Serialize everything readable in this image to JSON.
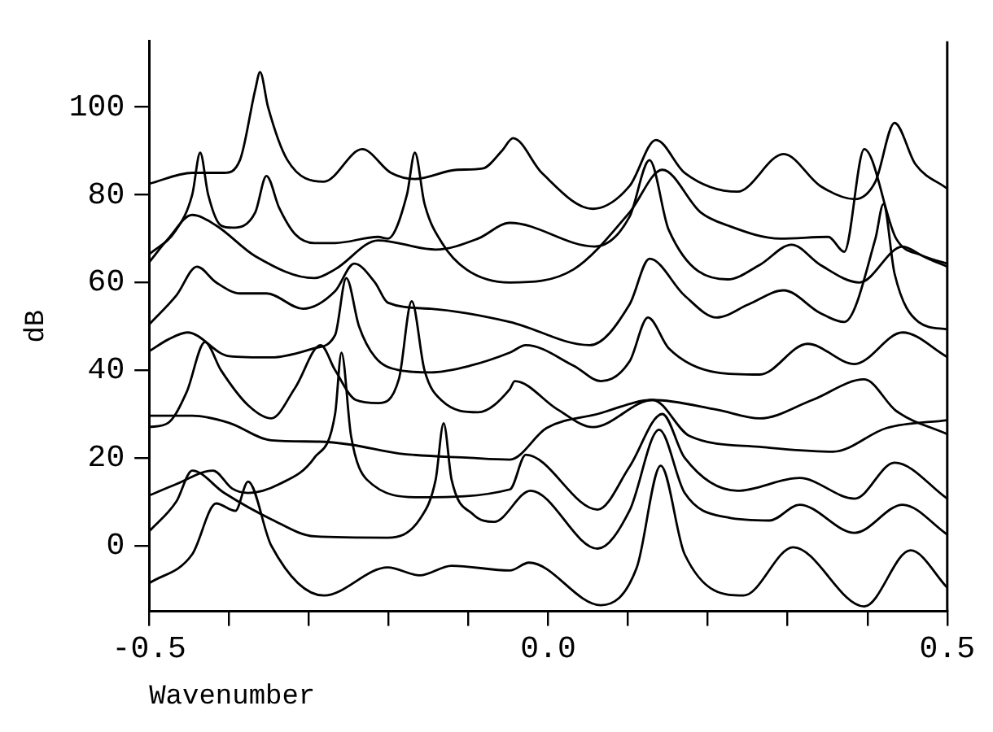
{
  "chart_data": {
    "type": "line",
    "xlabel": "Wavenumber",
    "ylabel": "dB",
    "xlim": [
      -0.5,
      0.5
    ],
    "ylim": [
      -15,
      115
    ],
    "xticks": [
      {
        "value": -0.5,
        "label": "-0.5"
      },
      {
        "value": -0.4,
        "label": null
      },
      {
        "value": -0.3,
        "label": null
      },
      {
        "value": -0.2,
        "label": null
      },
      {
        "value": -0.1,
        "label": null
      },
      {
        "value": 0,
        "label": "0.0"
      },
      {
        "value": 0.1,
        "label": null
      },
      {
        "value": 0.2,
        "label": null
      },
      {
        "value": 0.3,
        "label": null
      },
      {
        "value": 0.4,
        "label": null
      },
      {
        "value": 0.5,
        "label": "0.5"
      }
    ],
    "yticks": [
      0,
      20,
      40,
      60,
      80,
      100
    ],
    "grid": false,
    "legend": false,
    "marker": "none",
    "line_style": "solid",
    "series": [
      {
        "color": "#000000",
        "x": [
          -0.5,
          -0.446,
          -0.406,
          -0.386,
          -0.367,
          -0.361,
          -0.351,
          -0.327,
          -0.281,
          -0.233,
          -0.197,
          -0.167,
          -0.114,
          -0.082,
          -0.058,
          -0.044,
          -0.008,
          0.056,
          0.102,
          0.135,
          0.171,
          0.237,
          0.295,
          0.341,
          0.384,
          0.41,
          0.434,
          0.46,
          0.5
        ],
        "values": [
          82.5,
          85,
          85,
          88,
          104,
          108,
          100,
          88,
          83,
          90.4,
          85,
          83.6,
          85.7,
          86,
          90,
          92.9,
          85,
          76.8,
          82,
          92.5,
          85,
          80.7,
          89.3,
          82,
          79,
          83,
          96.4,
          87,
          81.4
        ]
      },
      {
        "color": "#000000",
        "x": [
          -0.5,
          -0.466,
          -0.446,
          -0.436,
          -0.426,
          -0.41,
          -0.396,
          -0.367,
          -0.353,
          -0.337,
          -0.317,
          -0.293,
          -0.267,
          -0.213,
          -0.201,
          -0.177,
          -0.167,
          -0.155,
          -0.133,
          -0.102,
          -0.048,
          0.032,
          0.102,
          0.143,
          0.191,
          0.225,
          0.291,
          0.351,
          0.371,
          0.396,
          0.436,
          0.47,
          0.5
        ],
        "values": [
          66.4,
          72,
          80,
          89.6,
          80,
          73,
          72.5,
          76,
          84.3,
          77,
          71,
          69,
          69,
          70.4,
          70,
          80,
          89.6,
          78,
          69,
          62.9,
          60,
          63,
          76,
          85.7,
          76,
          73,
          70,
          70.4,
          67,
          90.4,
          70,
          66,
          63.6
        ]
      },
      {
        "color": "#000000",
        "x": [
          -0.5,
          -0.476,
          -0.446,
          -0.416,
          -0.367,
          -0.293,
          -0.267,
          -0.213,
          -0.141,
          -0.088,
          -0.048,
          0.058,
          0.102,
          0.127,
          0.151,
          0.225,
          0.265,
          0.305,
          0.341,
          0.39,
          0.444,
          0.47,
          0.5
        ],
        "values": [
          64.6,
          70,
          75.4,
          73,
          66,
          61,
          63,
          69.6,
          67.5,
          70,
          73.6,
          68.2,
          75,
          87.9,
          72,
          60.7,
          64,
          68.6,
          64,
          60,
          68.2,
          66,
          64.3
        ]
      },
      {
        "color": "#000000",
        "x": [
          -0.5,
          -0.466,
          -0.44,
          -0.416,
          -0.386,
          -0.353,
          -0.307,
          -0.267,
          -0.243,
          -0.217,
          -0.201,
          -0.147,
          -0.048,
          0.052,
          0.102,
          0.127,
          0.171,
          0.211,
          0.251,
          0.295,
          0.341,
          0.371,
          0.41,
          0.42,
          0.434,
          0.464,
          0.5
        ],
        "values": [
          50.4,
          57,
          63.6,
          60,
          57.5,
          57.5,
          54,
          58,
          64.3,
          60,
          55.4,
          54,
          51,
          45.7,
          55,
          65.4,
          57,
          52,
          55,
          58.2,
          53,
          51,
          70,
          77.9,
          62,
          51,
          49.3
        ]
      },
      {
        "color": "#000000",
        "x": [
          -0.5,
          -0.476,
          -0.452,
          -0.4,
          -0.347,
          -0.293,
          -0.267,
          -0.253,
          -0.237,
          -0.217,
          -0.187,
          -0.147,
          -0.098,
          -0.048,
          -0.028,
          0.032,
          0.066,
          0.102,
          0.125,
          0.151,
          0.211,
          0.265,
          0.325,
          0.384,
          0.444,
          0.5
        ],
        "values": [
          44.3,
          47,
          48.6,
          43.2,
          42.9,
          45,
          48,
          61,
          50,
          43,
          40,
          39.5,
          41,
          44,
          45.7,
          41,
          37.5,
          42,
          52,
          45,
          39.5,
          39,
          46,
          41.4,
          48.6,
          43
        ]
      },
      {
        "color": "#000000",
        "x": [
          -0.5,
          -0.476,
          -0.453,
          -0.43,
          -0.41,
          -0.376,
          -0.347,
          -0.317,
          -0.285,
          -0.267,
          -0.241,
          -0.213,
          -0.187,
          -0.171,
          -0.155,
          -0.133,
          -0.088,
          -0.048,
          -0.042,
          0.012,
          0.056,
          0.131,
          0.177,
          0.265,
          0.357,
          0.424,
          0.5
        ],
        "values": [
          27,
          28,
          35,
          46.4,
          40,
          32,
          29,
          36,
          45.7,
          40,
          33.2,
          32.5,
          38,
          55.7,
          40,
          33,
          30.4,
          35.7,
          37.5,
          31,
          27,
          33.2,
          25,
          22.5,
          21.4,
          26.8,
          28.6
        ]
      },
      {
        "color": "#000000",
        "x": [
          -0.5,
          -0.446,
          -0.4,
          -0.347,
          -0.287,
          -0.247,
          -0.187,
          -0.098,
          -0.048,
          -0.002,
          0.062,
          0.131,
          0.211,
          0.265,
          0.331,
          0.396,
          0.436,
          0.5
        ],
        "values": [
          29.6,
          29.6,
          28,
          24,
          23.7,
          23,
          21,
          20,
          19.6,
          26.8,
          30,
          33.2,
          31,
          29,
          33.2,
          37.9,
          30.7,
          25.4
        ]
      },
      {
        "color": "#000000",
        "x": [
          -0.5,
          -0.466,
          -0.42,
          -0.396,
          -0.376,
          -0.337,
          -0.293,
          -0.267,
          -0.259,
          -0.247,
          -0.227,
          -0.161,
          -0.048,
          -0.028,
          0.062,
          0.102,
          0.143,
          0.171,
          0.237,
          0.315,
          0.384,
          0.434,
          0.5
        ],
        "values": [
          11.4,
          14,
          17.1,
          13,
          12,
          14,
          20,
          30,
          44,
          25,
          15,
          11,
          12.8,
          20.7,
          8.2,
          18,
          30,
          20,
          12.5,
          15.4,
          10.7,
          18.9,
          10.7
        ]
      },
      {
        "color": "#000000",
        "x": [
          -0.5,
          -0.466,
          -0.446,
          -0.406,
          -0.347,
          -0.293,
          -0.201,
          -0.161,
          -0.141,
          -0.131,
          -0.121,
          -0.094,
          -0.068,
          -0.022,
          0.062,
          0.102,
          0.139,
          0.171,
          0.225,
          0.277,
          0.315,
          0.384,
          0.444,
          0.5
        ],
        "values": [
          3.2,
          10,
          17.1,
          12,
          6,
          2.1,
          1.8,
          6,
          15,
          27.9,
          15,
          7.1,
          5.4,
          12.5,
          -0.7,
          8,
          26.4,
          12,
          6.4,
          5.7,
          9.3,
          2.9,
          9.3,
          2.5
        ]
      },
      {
        "color": "#000000",
        "x": [
          -0.5,
          -0.446,
          -0.416,
          -0.392,
          -0.376,
          -0.347,
          -0.281,
          -0.201,
          -0.161,
          -0.121,
          -0.048,
          -0.024,
          0.066,
          0.111,
          0.141,
          0.171,
          0.245,
          0.307,
          0.396,
          0.454,
          0.5
        ],
        "values": [
          -8.6,
          -2,
          9.6,
          7.9,
          14.6,
          0,
          -11.4,
          -5,
          -6.8,
          -4.6,
          -5.7,
          -3.9,
          -13.6,
          -5,
          18.2,
          -2,
          -11.4,
          -0.4,
          -13.9,
          -1.1,
          -9.6
        ]
      }
    ]
  }
}
